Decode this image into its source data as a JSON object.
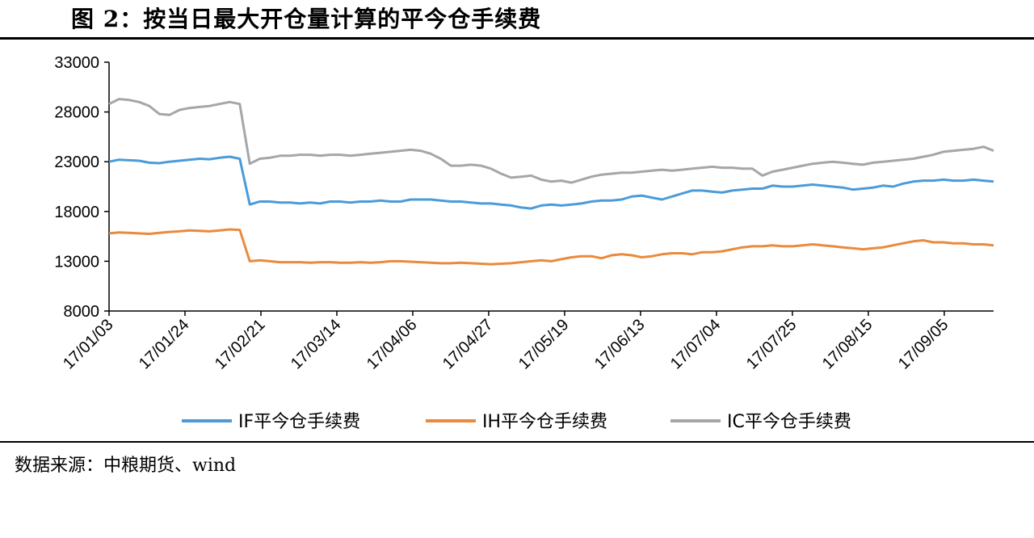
{
  "figure": {
    "title": "图 2：按当日最大开仓量计算的平今仓手续费",
    "source": "数据来源：中粮期货、wind"
  },
  "colors": {
    "IF": "#4b9bd9",
    "IH": "#ea8a3c",
    "IC": "#a6a6a6"
  },
  "chart_data": {
    "type": "line",
    "title": "",
    "xlabel": "",
    "ylabel": "",
    "ylim": [
      8000,
      33000
    ],
    "yticks": [
      "33000",
      "28000",
      "23000",
      "18000",
      "13000",
      "8000"
    ],
    "x_tick_labels": [
      "17/01/03",
      "17/01/24",
      "17/02/21",
      "17/03/14",
      "17/04/06",
      "17/04/27",
      "17/05/19",
      "17/06/13",
      "17/07/04",
      "17/07/25",
      "17/08/15",
      "17/09/05"
    ],
    "grid": false,
    "legend": "bottom",
    "series": [
      {
        "name": "IF平今仓手续费",
        "key": "IF",
        "values": [
          23000,
          23200,
          23150,
          23100,
          22900,
          22850,
          23000,
          23100,
          23200,
          23300,
          23250,
          23400,
          23500,
          23300,
          18700,
          19000,
          19000,
          18900,
          18900,
          18800,
          18900,
          18800,
          19000,
          19000,
          18900,
          19000,
          19000,
          19100,
          19000,
          19000,
          19200,
          19200,
          19200,
          19100,
          19000,
          19000,
          18900,
          18800,
          18800,
          18700,
          18600,
          18400,
          18300,
          18600,
          18700,
          18600,
          18700,
          18800,
          19000,
          19100,
          19100,
          19200,
          19500,
          19600,
          19400,
          19200,
          19500,
          19800,
          20100,
          20100,
          20000,
          19900,
          20100,
          20200,
          20300,
          20300,
          20600,
          20500,
          20500,
          20600,
          20700,
          20600,
          20500,
          20400,
          20200,
          20300,
          20400,
          20600,
          20500,
          20800,
          21000,
          21100,
          21100,
          21200,
          21100,
          21100,
          21200,
          21100,
          21000
        ]
      },
      {
        "name": "IH平今仓手续费",
        "key": "IH",
        "values": [
          15800,
          15900,
          15850,
          15800,
          15750,
          15850,
          15950,
          16000,
          16100,
          16050,
          16000,
          16100,
          16200,
          16150,
          13000,
          13100,
          13000,
          12900,
          12900,
          12900,
          12850,
          12900,
          12900,
          12850,
          12850,
          12900,
          12850,
          12900,
          13000,
          13000,
          12950,
          12900,
          12850,
          12800,
          12800,
          12850,
          12800,
          12750,
          12700,
          12750,
          12800,
          12900,
          13000,
          13100,
          13000,
          13200,
          13400,
          13500,
          13500,
          13300,
          13600,
          13700,
          13600,
          13400,
          13500,
          13700,
          13800,
          13800,
          13700,
          13900,
          13900,
          14000,
          14200,
          14400,
          14500,
          14500,
          14600,
          14500,
          14500,
          14600,
          14700,
          14600,
          14500,
          14400,
          14300,
          14200,
          14300,
          14400,
          14600,
          14800,
          15000,
          15100,
          14900,
          14900,
          14800,
          14800,
          14700,
          14700,
          14600
        ]
      },
      {
        "name": "IC平今仓手续费",
        "key": "IC",
        "values": [
          28800,
          29300,
          29200,
          29000,
          28600,
          27800,
          27700,
          28200,
          28400,
          28500,
          28600,
          28800,
          29000,
          28800,
          22800,
          23300,
          23400,
          23600,
          23600,
          23700,
          23700,
          23600,
          23700,
          23700,
          23600,
          23700,
          23800,
          23900,
          24000,
          24100,
          24200,
          24100,
          23800,
          23300,
          22600,
          22600,
          22700,
          22600,
          22300,
          21800,
          21400,
          21500,
          21600,
          21200,
          21000,
          21100,
          20900,
          21200,
          21500,
          21700,
          21800,
          21900,
          21900,
          22000,
          22100,
          22200,
          22100,
          22200,
          22300,
          22400,
          22500,
          22400,
          22400,
          22300,
          22300,
          21600,
          22000,
          22200,
          22400,
          22600,
          22800,
          22900,
          23000,
          22900,
          22800,
          22700,
          22900,
          23000,
          23100,
          23200,
          23300,
          23500,
          23700,
          24000,
          24100,
          24200,
          24300,
          24500,
          24100
        ]
      }
    ]
  }
}
